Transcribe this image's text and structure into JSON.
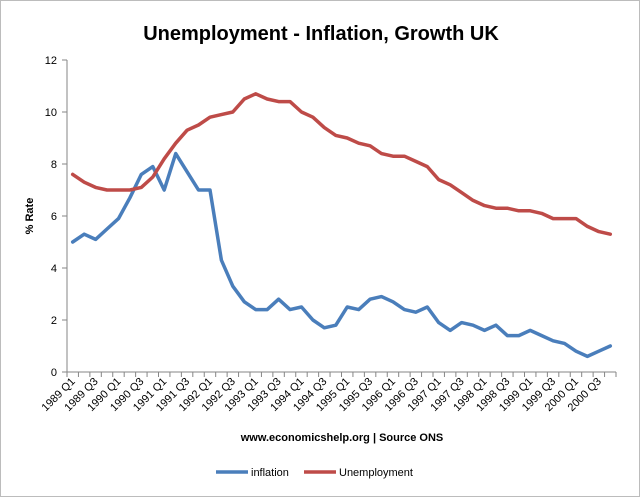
{
  "chart_data": {
    "type": "line",
    "title": "Unemployment - Inflation, Growth UK",
    "xlabel": "www.economicshelp.org | Source ONS",
    "ylabel": "% Rate",
    "ylim": [
      0,
      12
    ],
    "yticks": [
      0,
      2,
      4,
      6,
      8,
      10,
      12
    ],
    "grid": false,
    "legend": "bottom",
    "categories": [
      "1989 Q1",
      "1989 Q2",
      "1989 Q3",
      "1989 Q4",
      "1990 Q1",
      "1990 Q2",
      "1990 Q3",
      "1990 Q4",
      "1991 Q1",
      "1991 Q2",
      "1991 Q3",
      "1991 Q4",
      "1992 Q1",
      "1992 Q2",
      "1992 Q3",
      "1992 Q4",
      "1993 Q1",
      "1993 Q2",
      "1993 Q3",
      "1993 Q4",
      "1994 Q1",
      "1994 Q2",
      "1994 Q3",
      "1994 Q4",
      "1995 Q1",
      "1995 Q2",
      "1995 Q3",
      "1995 Q4",
      "1996 Q1",
      "1996 Q2",
      "1996 Q3",
      "1996 Q4",
      "1997 Q1",
      "1997 Q2",
      "1997 Q3",
      "1997 Q4",
      "1998 Q1",
      "1998 Q2",
      "1998 Q3",
      "1998 Q4",
      "1999 Q1",
      "1999 Q2",
      "1999 Q3",
      "1999 Q4",
      "2000 Q1",
      "2000 Q2",
      "2000 Q3",
      "2000 Q4"
    ],
    "tick_labels": [
      "1989 Q1",
      "1989 Q3",
      "1990 Q1",
      "1990 Q3",
      "1991 Q1",
      "1991 Q3",
      "1992 Q1",
      "1992 Q3",
      "1993 Q1",
      "1993 Q3",
      "1994 Q1",
      "1994 Q3",
      "1995 Q1",
      "1995 Q3",
      "1996 Q1",
      "1996 Q3",
      "1997 Q1",
      "1997 Q3",
      "1998 Q1",
      "1998 Q3",
      "1999 Q1",
      "1999 Q3",
      "2000 Q1",
      "2000 Q3"
    ],
    "series": [
      {
        "name": "inflation",
        "color": "#4a7ebb",
        "values": [
          5.0,
          5.3,
          5.1,
          5.5,
          5.9,
          6.7,
          7.6,
          7.9,
          7.0,
          8.4,
          7.7,
          7.0,
          7.0,
          4.3,
          3.3,
          2.7,
          2.4,
          2.4,
          2.8,
          2.4,
          2.5,
          2.0,
          1.7,
          1.8,
          2.5,
          2.4,
          2.8,
          2.9,
          2.7,
          2.4,
          2.3,
          2.5,
          1.9,
          1.6,
          1.9,
          1.8,
          1.6,
          1.8,
          1.4,
          1.4,
          1.6,
          1.4,
          1.2,
          1.1,
          0.8,
          0.6,
          0.8,
          1.0
        ]
      },
      {
        "name": "Unemployment",
        "color": "#be4b48",
        "values": [
          7.6,
          7.3,
          7.1,
          7.0,
          7.0,
          7.0,
          7.1,
          7.5,
          8.2,
          8.8,
          9.3,
          9.5,
          9.8,
          9.9,
          10.0,
          10.5,
          10.7,
          10.5,
          10.4,
          10.4,
          10.0,
          9.8,
          9.4,
          9.1,
          9.0,
          8.8,
          8.7,
          8.4,
          8.3,
          8.3,
          8.1,
          7.9,
          7.4,
          7.2,
          6.9,
          6.6,
          6.4,
          6.3,
          6.3,
          6.2,
          6.2,
          6.1,
          5.9,
          5.9,
          5.9,
          5.6,
          5.4,
          5.3
        ]
      }
    ]
  }
}
